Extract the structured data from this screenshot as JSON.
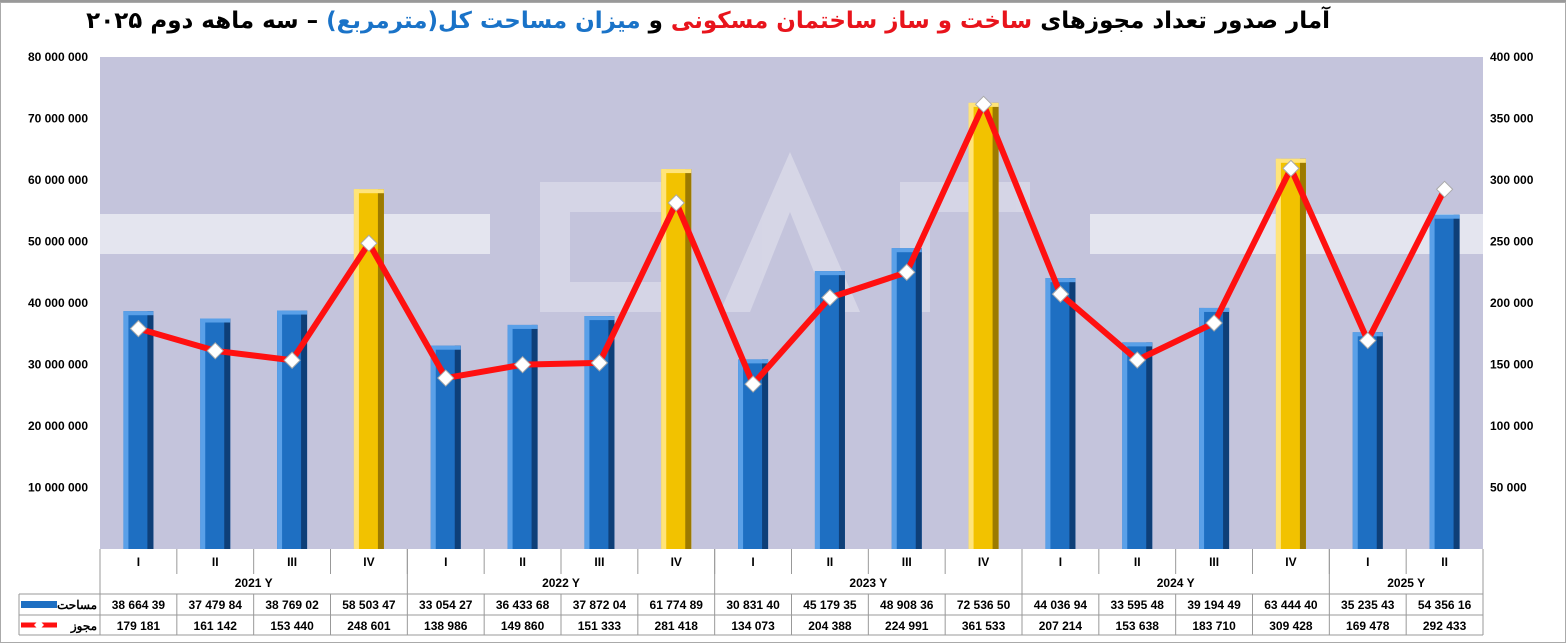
{
  "title": {
    "part1": "آمار صدور  تعداد مجوزهای ",
    "part2": "ساخت و ساز ساختمان مسکونی",
    "part3": " و ",
    "part4": "میزان مساحت کل(مترمربع)",
    "part5": " – سه ماهه دوم ۲۰۲۵"
  },
  "colors": {
    "bar_blue": "#1e6fc2",
    "bar_gold": "#f2c200",
    "line": "#ff1010",
    "marker": "#ffffff",
    "plot_bg": "#c4c4dc"
  },
  "chart_data": {
    "type": "bar+line",
    "quarters": [
      "I",
      "II",
      "III",
      "IV",
      "I",
      "II",
      "III",
      "IV",
      "I",
      "II",
      "III",
      "IV",
      "I",
      "II",
      "III",
      "IV",
      "I",
      "II"
    ],
    "years": [
      {
        "label": "2021  Y",
        "span": 4
      },
      {
        "label": "2022  Y",
        "span": 4
      },
      {
        "label": "2023  Y",
        "span": 4
      },
      {
        "label": "2024  Y",
        "span": 4
      },
      {
        "label": "2025  Y",
        "span": 2
      }
    ],
    "left_axis": {
      "min": 0,
      "max": 80000000,
      "ticks": [
        "10 000 000",
        "20 000 000",
        "30 000 000",
        "40 000 000",
        "50 000 000",
        "60 000 000",
        "70 000 000",
        "80 000 000"
      ]
    },
    "right_axis": {
      "min": 0,
      "max": 400000,
      "ticks": [
        "50 000",
        "100 000",
        "150 000",
        "200 000",
        "250 000",
        "300 000",
        "350 000",
        "400 000"
      ]
    },
    "series": [
      {
        "name": "مساحت",
        "type": "bar",
        "axis": "left",
        "labels": [
          "38 664 39",
          "37 479 84",
          "38 769 02",
          "58 503 47",
          "33 054 27",
          "36 433 68",
          "37 872 04",
          "61 774 89",
          "30 831 40",
          "45 179 35",
          "48 908 36",
          "72 536 50",
          "44 036 94",
          "33 595 48",
          "39 194 49",
          "63 444 40",
          "35 235 43",
          "54 356 16"
        ],
        "values": [
          38664390,
          37479840,
          38769020,
          58503470,
          33054270,
          36433680,
          37872040,
          61774890,
          30831400,
          45179350,
          48908360,
          72536500,
          44036940,
          33595480,
          39194490,
          63444400,
          35235430,
          54356160
        ]
      },
      {
        "name": "مجوز",
        "type": "line",
        "axis": "right",
        "labels": [
          "179 181",
          "161 142",
          "153 440",
          "248 601",
          "138 986",
          "149 860",
          "151 333",
          "281 418",
          "134 073",
          "204 388",
          "224 991",
          "361 533",
          "207 214",
          "153 638",
          "183 710",
          "309 428",
          "169 478",
          "292 433"
        ],
        "values": [
          179181,
          161142,
          153440,
          248601,
          138986,
          149860,
          151333,
          281418,
          134073,
          204388,
          224991,
          361533,
          207214,
          153638,
          183710,
          309428,
          169478,
          292433
        ]
      }
    ]
  }
}
